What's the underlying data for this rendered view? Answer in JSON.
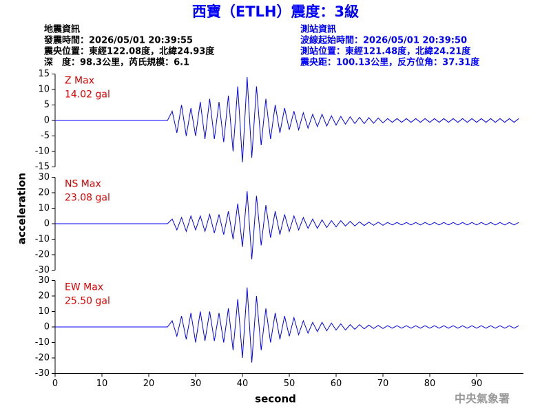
{
  "title": "西寶（ETLH）震度：3級",
  "info_left": [
    "地震資訊",
    "發震時間：2026/05/01 20:39:55",
    "震央位置：東經122.08度，北緯24.93度",
    "深　度：98.3公里，芮氏規模：6.1"
  ],
  "info_right": [
    "測站資訊",
    "波線起始時間：2026/05/01 20:39:50",
    "測站位置：東經121.48度，北緯24.21度",
    "震央距：100.13公里，反方位角：37.31度"
  ],
  "ylabel": "acceleration",
  "xlabel": "second",
  "footer": "中央氣象署",
  "chart_data": [
    {
      "type": "line",
      "annotation": [
        "Z Max",
        "14.02 gal"
      ],
      "xlim": [
        0,
        100
      ],
      "ylim": [
        -15,
        15
      ],
      "yticks": [
        -15,
        -10,
        -5,
        0,
        5,
        10,
        15
      ],
      "x": [
        0,
        1,
        2,
        3,
        4,
        5,
        6,
        7,
        8,
        9,
        10,
        11,
        12,
        13,
        14,
        15,
        16,
        17,
        18,
        19,
        20,
        21,
        22,
        23,
        24,
        25,
        26,
        27,
        28,
        29,
        30,
        31,
        32,
        33,
        34,
        35,
        36,
        37,
        38,
        39,
        40,
        41,
        42,
        43,
        44,
        45,
        46,
        47,
        48,
        49,
        50,
        51,
        52,
        53,
        54,
        55,
        56,
        57,
        58,
        59,
        60,
        61,
        62,
        63,
        64,
        65,
        66,
        67,
        68,
        69,
        70,
        71,
        72,
        73,
        74,
        75,
        76,
        77,
        78,
        79,
        80,
        81,
        82,
        83,
        84,
        85,
        86,
        87,
        88,
        89,
        90,
        91,
        92,
        93,
        94,
        95,
        96,
        97,
        98,
        99
      ],
      "series": [
        {
          "color": "#0000ff",
          "values": [
            0,
            0,
            0,
            0,
            0,
            0,
            0,
            0,
            0,
            0,
            0,
            0,
            0,
            0,
            0,
            0,
            0,
            0,
            0,
            0,
            0,
            0,
            0,
            0,
            0,
            3,
            -4,
            5,
            -5,
            4,
            -5,
            6,
            -6,
            7,
            -6,
            6,
            -7,
            8,
            -10,
            11,
            -13.5,
            14.02,
            -12,
            11,
            -8,
            7,
            -6,
            5,
            -4,
            4,
            -3,
            3,
            -3,
            2.5,
            -2.5,
            2,
            -2,
            2,
            -1.8,
            1.5,
            -1.5,
            1.3,
            -1.2,
            1.2,
            -1,
            1,
            -1,
            0.9,
            -0.9,
            0.8,
            -0.8,
            0.6,
            -0.6,
            0.6,
            -0.6,
            0.6,
            -0.6,
            0.6,
            -0.6,
            0.6,
            -0.6,
            0.6,
            -0.6,
            0.6,
            -0.6,
            0.6,
            -0.6,
            0.6,
            -0.6,
            0.6,
            -0.6,
            0.6,
            -0.6,
            0.6,
            -0.6,
            0.6,
            -0.6,
            0.6,
            -0.6,
            0.6
          ]
        }
      ]
    },
    {
      "type": "line",
      "annotation": [
        "NS Max",
        "23.08 gal"
      ],
      "xlim": [
        0,
        100
      ],
      "ylim": [
        -30,
        30
      ],
      "yticks": [
        -30,
        -20,
        -10,
        0,
        10,
        20,
        30
      ],
      "x": [
        0,
        1,
        2,
        3,
        4,
        5,
        6,
        7,
        8,
        9,
        10,
        11,
        12,
        13,
        14,
        15,
        16,
        17,
        18,
        19,
        20,
        21,
        22,
        23,
        24,
        25,
        26,
        27,
        28,
        29,
        30,
        31,
        32,
        33,
        34,
        35,
        36,
        37,
        38,
        39,
        40,
        41,
        42,
        43,
        44,
        45,
        46,
        47,
        48,
        49,
        50,
        51,
        52,
        53,
        54,
        55,
        56,
        57,
        58,
        59,
        60,
        61,
        62,
        63,
        64,
        65,
        66,
        67,
        68,
        69,
        70,
        71,
        72,
        73,
        74,
        75,
        76,
        77,
        78,
        79,
        80,
        81,
        82,
        83,
        84,
        85,
        86,
        87,
        88,
        89,
        90,
        91,
        92,
        93,
        94,
        95,
        96,
        97,
        98,
        99
      ],
      "series": [
        {
          "color": "#0000ff",
          "values": [
            0,
            0,
            0,
            0,
            0,
            0,
            0,
            0,
            0,
            0,
            0,
            0,
            0,
            0,
            0,
            0,
            0,
            0,
            0,
            0,
            0,
            0,
            0,
            0,
            0,
            3,
            -4,
            4,
            -5,
            5,
            -4,
            5,
            -5,
            6,
            -6,
            6,
            -7,
            8,
            -10,
            13,
            -15,
            21,
            -23,
            18,
            -14,
            12,
            -9,
            8,
            -7,
            6,
            -5,
            5,
            -4,
            4,
            -3,
            3,
            -3,
            2.5,
            -2.5,
            2,
            -2,
            2,
            -1.5,
            1.5,
            -1.5,
            1.2,
            -1.2,
            1,
            -1,
            1,
            -1,
            0.8,
            -0.8,
            0.8,
            -0.8,
            0.8,
            -0.8,
            0.8,
            -0.8,
            0.8,
            -0.8,
            0.8,
            -0.8,
            0.8,
            -0.8,
            0.8,
            -0.8,
            0.8,
            -0.8,
            0.8,
            -0.8,
            0.8,
            -0.8,
            0.8,
            -0.8,
            0.8,
            -0.8,
            0.8,
            -0.8,
            0.8
          ]
        }
      ]
    },
    {
      "type": "line",
      "annotation": [
        "EW Max",
        "25.50 gal"
      ],
      "xlim": [
        0,
        100
      ],
      "ylim": [
        -30,
        30
      ],
      "yticks": [
        -30,
        -20,
        -10,
        0,
        10,
        20,
        30
      ],
      "xticks": [
        0,
        10,
        20,
        30,
        40,
        50,
        60,
        70,
        80,
        90
      ],
      "x": [
        0,
        1,
        2,
        3,
        4,
        5,
        6,
        7,
        8,
        9,
        10,
        11,
        12,
        13,
        14,
        15,
        16,
        17,
        18,
        19,
        20,
        21,
        22,
        23,
        24,
        25,
        26,
        27,
        28,
        29,
        30,
        31,
        32,
        33,
        34,
        35,
        36,
        37,
        38,
        39,
        40,
        41,
        42,
        43,
        44,
        45,
        46,
        47,
        48,
        49,
        50,
        51,
        52,
        53,
        54,
        55,
        56,
        57,
        58,
        59,
        60,
        61,
        62,
        63,
        64,
        65,
        66,
        67,
        68,
        69,
        70,
        71,
        72,
        73,
        74,
        75,
        76,
        77,
        78,
        79,
        80,
        81,
        82,
        83,
        84,
        85,
        86,
        87,
        88,
        89,
        90,
        91,
        92,
        93,
        94,
        95,
        96,
        97,
        98,
        99
      ],
      "series": [
        {
          "color": "#0000ff",
          "values": [
            0,
            0,
            0,
            0,
            0,
            0,
            0,
            0,
            0,
            0,
            0,
            0,
            0,
            0,
            0,
            0,
            0,
            0,
            0,
            0,
            0,
            0,
            0,
            0,
            0,
            4,
            -6,
            7,
            -8,
            9,
            -10,
            10,
            -9,
            10,
            -9,
            9,
            -10,
            12,
            -15,
            18,
            -20,
            25.5,
            -23,
            20,
            -15,
            12,
            -10,
            9,
            -8,
            7,
            -6,
            6,
            -5,
            4,
            -4,
            3,
            -3,
            3,
            -2.5,
            2.5,
            -2,
            2,
            -2,
            1.5,
            -1.5,
            1.5,
            -1.2,
            1.2,
            -1,
            1,
            -1,
            0.8,
            -0.8,
            0.8,
            -0.8,
            0.8,
            -0.8,
            0.8,
            -0.8,
            0.8,
            -0.8,
            0.8,
            -0.8,
            0.8,
            -0.8,
            0.8,
            -0.8,
            0.8,
            -0.8,
            0.8,
            -0.8,
            0.8,
            -0.8,
            0.8,
            -0.8,
            0.8,
            -0.8,
            0.8,
            -0.8,
            0.8
          ]
        }
      ]
    }
  ]
}
